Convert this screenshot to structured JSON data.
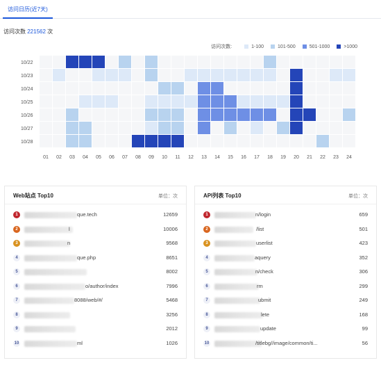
{
  "tabs": [
    {
      "label": "访问日历(近7天)"
    }
  ],
  "summary": {
    "label": "访问次数",
    "total": "221562",
    "unit": "次"
  },
  "legend": {
    "title": "访问次数:",
    "items": [
      {
        "label": "1-100",
        "color": "#dde9f8"
      },
      {
        "label": "101-500",
        "color": "#b8d3ef"
      },
      {
        "label": "501-1000",
        "color": "#6e8fe5"
      },
      {
        "label": ">1000",
        "color": "#2445b8"
      }
    ]
  },
  "chart_data": {
    "type": "heatmap",
    "title": "访问日历(近7天)",
    "rows": [
      "10/22",
      "10/23",
      "10/24",
      "10/25",
      "10/26",
      "10/27",
      "10/28"
    ],
    "columns": [
      "01",
      "02",
      "03",
      "04",
      "05",
      "06",
      "07",
      "08",
      "09",
      "10",
      "11",
      "12",
      "13",
      "14",
      "15",
      "16",
      "17",
      "18",
      "19",
      "20",
      "21",
      "22",
      "23",
      "24"
    ],
    "levels": [
      "none",
      "1-100",
      "101-500",
      "501-1000",
      ">1000"
    ],
    "colors": [
      "#f5f6f8",
      "#dde9f8",
      "#b8d3ef",
      "#6e8fe5",
      "#2445b8"
    ],
    "values": [
      [
        0,
        0,
        4,
        4,
        4,
        0,
        2,
        0,
        2,
        0,
        0,
        0,
        0,
        0,
        0,
        0,
        0,
        2,
        0,
        0,
        0,
        0,
        0,
        0
      ],
      [
        0,
        1,
        0,
        0,
        1,
        1,
        1,
        0,
        2,
        0,
        0,
        1,
        1,
        1,
        1,
        1,
        1,
        1,
        0,
        4,
        0,
        0,
        1,
        1
      ],
      [
        0,
        0,
        0,
        0,
        0,
        0,
        0,
        0,
        0,
        2,
        2,
        0,
        3,
        3,
        0,
        0,
        0,
        0,
        0,
        4,
        0,
        0,
        0,
        0
      ],
      [
        0,
        0,
        0,
        1,
        1,
        1,
        0,
        0,
        1,
        1,
        1,
        1,
        3,
        3,
        3,
        1,
        1,
        1,
        1,
        4,
        0,
        0,
        0,
        0
      ],
      [
        0,
        0,
        2,
        0,
        0,
        0,
        0,
        0,
        2,
        2,
        2,
        0,
        3,
        3,
        3,
        3,
        3,
        3,
        0,
        4,
        4,
        0,
        0,
        2
      ],
      [
        0,
        0,
        2,
        2,
        0,
        0,
        0,
        0,
        1,
        2,
        2,
        0,
        3,
        0,
        2,
        0,
        1,
        0,
        2,
        4,
        0,
        0,
        0,
        0
      ],
      [
        0,
        0,
        2,
        2,
        0,
        0,
        0,
        4,
        4,
        4,
        4,
        0,
        0,
        0,
        0,
        0,
        0,
        0,
        0,
        0,
        0,
        2,
        0,
        0
      ]
    ]
  },
  "web_card": {
    "title": "Web站点 Top10",
    "unit": "单位：次",
    "rows": [
      {
        "rank": "1",
        "text": "que.tech",
        "value": "12659"
      },
      {
        "rank": "2",
        "text": "l",
        "value": "10006"
      },
      {
        "rank": "3",
        "text": "n",
        "value": "9568"
      },
      {
        "rank": "4",
        "text": "que.php",
        "value": "8651"
      },
      {
        "rank": "5",
        "text": "",
        "value": "8002"
      },
      {
        "rank": "6",
        "text": "o/author/index",
        "value": "7996"
      },
      {
        "rank": "7",
        "text": "8088/web/#/",
        "value": "5468"
      },
      {
        "rank": "8",
        "text": "",
        "value": "3256"
      },
      {
        "rank": "9",
        "text": "",
        "value": "2012"
      },
      {
        "rank": "10",
        "text": "ml",
        "value": "1026"
      }
    ]
  },
  "api_card": {
    "title": "API列表 Top10",
    "unit": "单位：次",
    "rows": [
      {
        "rank": "1",
        "text": "n/login",
        "value": "659"
      },
      {
        "rank": "2",
        "text": "/list",
        "value": "501"
      },
      {
        "rank": "3",
        "text": "userlist",
        "value": "423"
      },
      {
        "rank": "4",
        "text": "aquery",
        "value": "352"
      },
      {
        "rank": "5",
        "text": "n/check",
        "value": "306"
      },
      {
        "rank": "6",
        "text": "rm",
        "value": "299"
      },
      {
        "rank": "7",
        "text": "ubmit",
        "value": "249"
      },
      {
        "rank": "8",
        "text": "lete",
        "value": "168"
      },
      {
        "rank": "9",
        "text": "update",
        "value": "99"
      },
      {
        "rank": "10",
        "text": "/titlebg//image/common/ti...",
        "value": "56"
      }
    ]
  },
  "rank_colors": {
    "1": "#c0262d",
    "2": "#d9661f",
    "3": "#d9921f"
  }
}
